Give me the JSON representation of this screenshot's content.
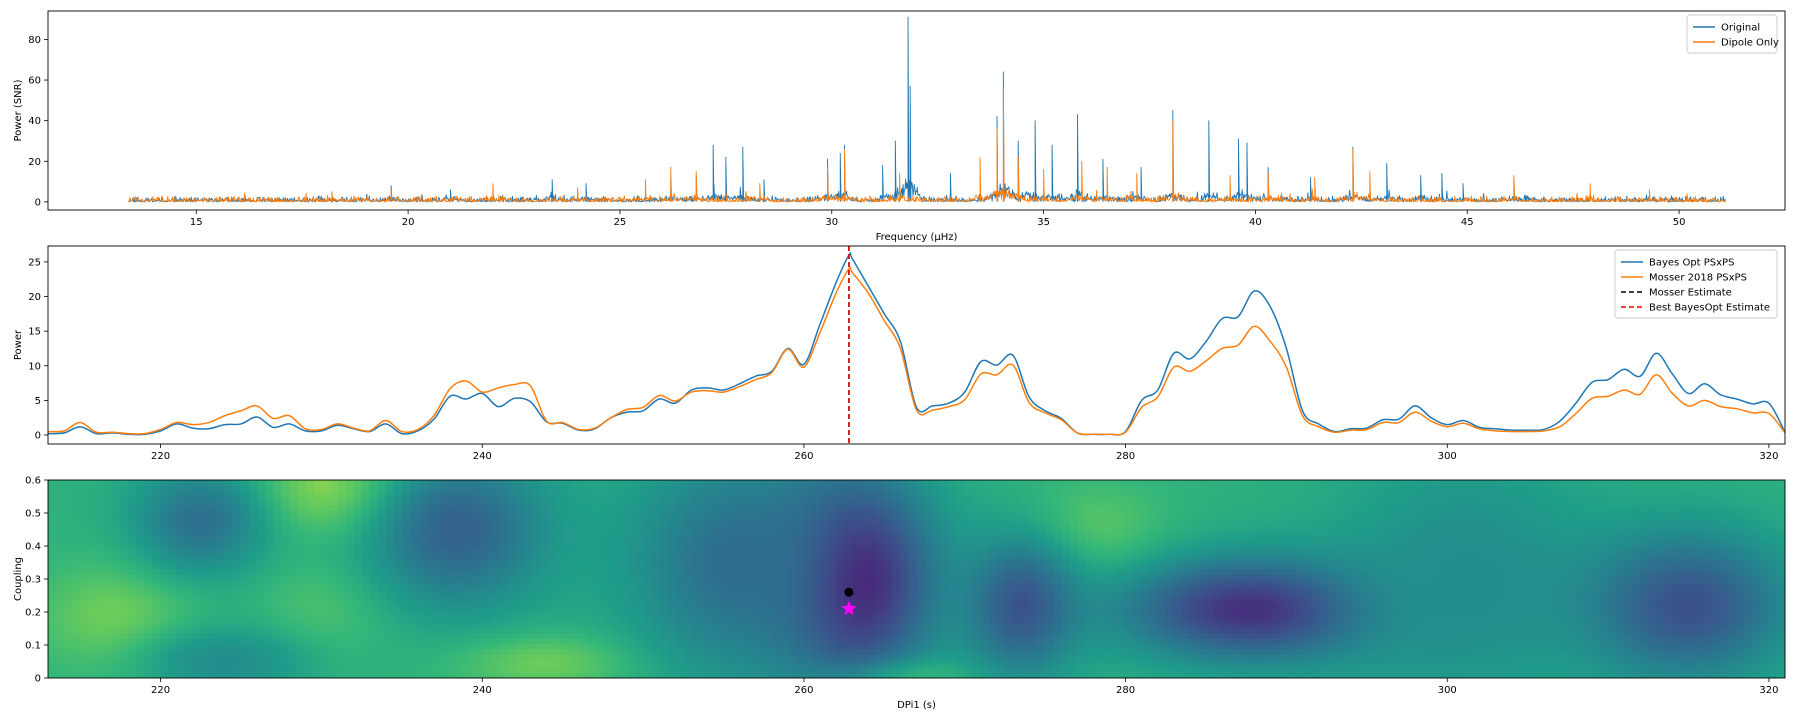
{
  "chart_data": [
    {
      "type": "line",
      "xlabel": "Frequency (μHz)",
      "ylabel": "Power (SNR)",
      "xlim": [
        11.5,
        52.5
      ],
      "ylim": [
        -4,
        94
      ],
      "xticks": [
        15,
        20,
        25,
        30,
        35,
        40,
        45,
        50
      ],
      "yticks": [
        0,
        20,
        40,
        60,
        80
      ],
      "legend_position": "upper-right",
      "series": [
        {
          "name": "Original",
          "color": "#1f77b4",
          "x_range": [
            13.4,
            51.1
          ],
          "peaks": [
            [
              19.6,
              8
            ],
            [
              21.0,
              6
            ],
            [
              23.4,
              11
            ],
            [
              24.2,
              9
            ],
            [
              26.2,
              12
            ],
            [
              26.8,
              13
            ],
            [
              27.2,
              28
            ],
            [
              27.5,
              22
            ],
            [
              27.9,
              27
            ],
            [
              28.4,
              11
            ],
            [
              29.9,
              21
            ],
            [
              30.2,
              24
            ],
            [
              30.3,
              28
            ],
            [
              31.2,
              18
            ],
            [
              31.5,
              30
            ],
            [
              31.8,
              91
            ],
            [
              31.85,
              57
            ],
            [
              32.8,
              14
            ],
            [
              33.9,
              42
            ],
            [
              34.05,
              64
            ],
            [
              34.4,
              30
            ],
            [
              34.8,
              40
            ],
            [
              35.2,
              28
            ],
            [
              35.8,
              43
            ],
            [
              36.4,
              21
            ],
            [
              37.3,
              17
            ],
            [
              38.05,
              45
            ],
            [
              38.9,
              40
            ],
            [
              39.6,
              31
            ],
            [
              39.8,
              29
            ],
            [
              40.3,
              17
            ],
            [
              41.3,
              12
            ],
            [
              42.3,
              27
            ],
            [
              43.1,
              19
            ],
            [
              43.9,
              13
            ],
            [
              44.4,
              14
            ],
            [
              44.9,
              9
            ],
            [
              46.1,
              11
            ]
          ]
        },
        {
          "name": "Dipole Only",
          "color": "#ff7f0e",
          "x_range": [
            13.4,
            51.1
          ],
          "peaks": [
            [
              18.2,
              5
            ],
            [
              19.6,
              6
            ],
            [
              22.0,
              9
            ],
            [
              24.0,
              7
            ],
            [
              25.6,
              11
            ],
            [
              26.2,
              17
            ],
            [
              26.8,
              15
            ],
            [
              28.3,
              9
            ],
            [
              29.9,
              17
            ],
            [
              30.3,
              26
            ],
            [
              31.6,
              14
            ],
            [
              33.5,
              22
            ],
            [
              33.9,
              36
            ],
            [
              34.05,
              56
            ],
            [
              34.4,
              22
            ],
            [
              35.0,
              16
            ],
            [
              35.9,
              20
            ],
            [
              36.5,
              17
            ],
            [
              37.2,
              14
            ],
            [
              38.05,
              40
            ],
            [
              39.4,
              13
            ],
            [
              40.3,
              14
            ],
            [
              41.4,
              12
            ],
            [
              42.3,
              26
            ],
            [
              42.7,
              15
            ],
            [
              46.1,
              13
            ],
            [
              47.9,
              9
            ],
            [
              49.3,
              6
            ]
          ]
        }
      ]
    },
    {
      "type": "line",
      "xlabel": "",
      "ylabel": "Power",
      "xlim": [
        213,
        321
      ],
      "ylim": [
        -1.3,
        27.3
      ],
      "xticks": [
        220,
        240,
        260,
        280,
        300,
        320
      ],
      "yticks": [
        0,
        5,
        10,
        15,
        20,
        25
      ],
      "legend_position": "upper-right",
      "series": [
        {
          "name": "Bayes Opt PSxPS",
          "color": "#1f77b4",
          "x": [
            213,
            214,
            215,
            216,
            217,
            218,
            219,
            220,
            221,
            222,
            223,
            224,
            225,
            226,
            227,
            228,
            229,
            230,
            231,
            232,
            233,
            234,
            235,
            236,
            237,
            238,
            239,
            240,
            241,
            242,
            243,
            244,
            245,
            246,
            247,
            248,
            249,
            250,
            251,
            252,
            253,
            254,
            255,
            256,
            257,
            258,
            259,
            260,
            261,
            262,
            262.8,
            263,
            264,
            265,
            266,
            267,
            268,
            269,
            270,
            271,
            272,
            273,
            274,
            275,
            276,
            277,
            278,
            279,
            280,
            281,
            282,
            283,
            284,
            285,
            286,
            287,
            288,
            289,
            290,
            291,
            292,
            293,
            294,
            295,
            296,
            297,
            298,
            299,
            300,
            301,
            302,
            303,
            304,
            305,
            306,
            307,
            308,
            309,
            310,
            311,
            312,
            313,
            314,
            315,
            316,
            317,
            318,
            319,
            320,
            321
          ],
          "values": [
            0.2,
            0.3,
            1.2,
            0.2,
            0.3,
            0.1,
            0.1,
            0.6,
            1.6,
            1.0,
            0.9,
            1.5,
            1.6,
            2.6,
            1.1,
            1.6,
            0.6,
            0.6,
            1.4,
            0.9,
            0.5,
            1.6,
            0.2,
            0.6,
            2.3,
            5.6,
            5.2,
            6.0,
            4.1,
            5.3,
            4.8,
            1.9,
            1.7,
            0.7,
            0.9,
            2.5,
            3.3,
            3.5,
            5.2,
            4.6,
            6.5,
            6.8,
            6.5,
            7.4,
            8.5,
            9.2,
            12.5,
            10.2,
            16,
            22,
            26,
            25.5,
            21.5,
            17.5,
            13.5,
            4.0,
            4.2,
            4.6,
            6.2,
            10.6,
            10.1,
            11.5,
            5.5,
            3.5,
            2.4,
            0.3,
            0.1,
            0.1,
            0.5,
            5.0,
            6.5,
            11.8,
            11.0,
            13.5,
            16.8,
            17.1,
            20.8,
            18.5,
            12.5,
            3.5,
            1.6,
            0.5,
            0.9,
            1.0,
            2.2,
            2.3,
            4.2,
            2.5,
            1.5,
            2.1,
            1.1,
            0.9,
            0.7,
            0.7,
            0.8,
            2.0,
            4.6,
            7.6,
            8.0,
            9.5,
            8.5,
            11.8,
            8.8,
            6.0,
            7.4,
            5.8,
            5.2,
            4.5,
            4.6,
            0.4
          ]
        },
        {
          "name": "Mosser 2018 PSxPS",
          "color": "#ff7f0e",
          "x": [
            213,
            214,
            215,
            216,
            217,
            218,
            219,
            220,
            221,
            222,
            223,
            224,
            225,
            226,
            227,
            228,
            229,
            230,
            231,
            232,
            233,
            234,
            235,
            236,
            237,
            238,
            239,
            240,
            241,
            242,
            243,
            244,
            245,
            246,
            247,
            248,
            249,
            250,
            251,
            252,
            253,
            254,
            255,
            256,
            257,
            258,
            259,
            260,
            261,
            262,
            262.8,
            263,
            264,
            265,
            266,
            267,
            268,
            269,
            270,
            271,
            272,
            273,
            274,
            275,
            276,
            277,
            278,
            279,
            280,
            281,
            282,
            283,
            284,
            285,
            286,
            287,
            288,
            289,
            290,
            291,
            292,
            293,
            294,
            295,
            296,
            297,
            298,
            299,
            300,
            301,
            302,
            303,
            304,
            305,
            306,
            307,
            308,
            309,
            310,
            311,
            312,
            313,
            314,
            315,
            316,
            317,
            318,
            319,
            320,
            321
          ],
          "values": [
            0.5,
            0.6,
            1.8,
            0.4,
            0.4,
            0.2,
            0.2,
            0.8,
            1.8,
            1.5,
            1.8,
            2.8,
            3.5,
            4.2,
            2.4,
            2.8,
            0.9,
            0.8,
            1.6,
            1.0,
            0.6,
            2.1,
            0.5,
            0.8,
            2.8,
            6.7,
            7.8,
            6.2,
            6.8,
            7.3,
            7.1,
            2.0,
            1.8,
            0.8,
            1.0,
            2.5,
            3.7,
            4.0,
            5.7,
            4.9,
            6.2,
            6.4,
            6.2,
            7.0,
            8.0,
            9.0,
            12.4,
            9.8,
            14.8,
            20.5,
            24,
            23.5,
            20.5,
            16.5,
            12.5,
            3.6,
            3.6,
            4.1,
            5.1,
            8.8,
            8.7,
            10.1,
            4.7,
            3.2,
            2.2,
            0.3,
            0.1,
            0.1,
            0.4,
            4.0,
            5.5,
            9.8,
            9.2,
            10.7,
            12.5,
            13.0,
            15.7,
            13.5,
            9.8,
            2.8,
            1.2,
            0.4,
            0.7,
            0.8,
            1.8,
            1.8,
            3.3,
            2.0,
            1.2,
            1.7,
            0.9,
            0.6,
            0.5,
            0.5,
            0.6,
            1.2,
            3.1,
            5.3,
            5.6,
            6.5,
            5.9,
            8.7,
            6.0,
            4.2,
            5.0,
            4.1,
            3.8,
            3.2,
            3.1,
            0.3
          ]
        },
        {
          "name": "Mosser Estimate",
          "color": "#000000",
          "style": "dashed",
          "vline_x": 262.8
        },
        {
          "name": "Best BayesOpt Estimate",
          "color": "#ff0000",
          "style": "dashed",
          "vline_x": 262.8
        }
      ]
    },
    {
      "type": "heatmap",
      "xlabel": "DPi1 (s)",
      "ylabel": "Coupling",
      "xlim": [
        213,
        321
      ],
      "ylim": [
        0.0,
        0.6
      ],
      "xticks": [
        220,
        240,
        260,
        280,
        300,
        320
      ],
      "yticks": [
        0.0,
        0.1,
        0.2,
        0.3,
        0.4,
        0.5,
        0.6
      ],
      "colormap": "viridis",
      "background_level": 0.72,
      "blobs": [
        {
          "x": 217.5,
          "y": 0.18,
          "sx": 3.5,
          "sy": 0.12,
          "level": 0.9
        },
        {
          "x": 231,
          "y": 0.57,
          "sx": 4,
          "sy": 0.1,
          "level": 0.97
        },
        {
          "x": 230,
          "y": 0.2,
          "sx": 3,
          "sy": 0.12,
          "level": 0.82
        },
        {
          "x": 244,
          "y": 0.05,
          "sx": 4,
          "sy": 0.06,
          "level": 0.9
        },
        {
          "x": 265,
          "y": 0.01,
          "sx": 3,
          "sy": 0.04,
          "level": 0.98
        },
        {
          "x": 278,
          "y": 0.45,
          "sx": 3,
          "sy": 0.1,
          "level": 0.85
        },
        {
          "x": 222.5,
          "y": 0.48,
          "sx": 3,
          "sy": 0.12,
          "level": 0.42
        },
        {
          "x": 224,
          "y": 0.05,
          "sx": 4,
          "sy": 0.08,
          "level": 0.55
        },
        {
          "x": 238.5,
          "y": 0.45,
          "sx": 4,
          "sy": 0.17,
          "level": 0.35
        },
        {
          "x": 263,
          "y": 0.3,
          "sx": 3.5,
          "sy": 0.22,
          "level": 0.02
        },
        {
          "x": 256,
          "y": 0.35,
          "sx": 5,
          "sy": 0.25,
          "level": 0.4
        },
        {
          "x": 273.5,
          "y": 0.22,
          "sx": 2.5,
          "sy": 0.15,
          "level": 0.3
        },
        {
          "x": 288.5,
          "y": 0.21,
          "sx": 6,
          "sy": 0.11,
          "level": 0.12
        },
        {
          "x": 301,
          "y": 0.3,
          "sx": 6,
          "sy": 0.3,
          "level": 0.55
        },
        {
          "x": 315,
          "y": 0.22,
          "sx": 4.5,
          "sy": 0.16,
          "level": 0.28
        }
      ],
      "markers": [
        {
          "x": 262.8,
          "y": 0.26,
          "shape": "circle",
          "color": "#000000"
        },
        {
          "x": 262.8,
          "y": 0.21,
          "shape": "star",
          "color": "#ff00ff"
        }
      ]
    }
  ]
}
